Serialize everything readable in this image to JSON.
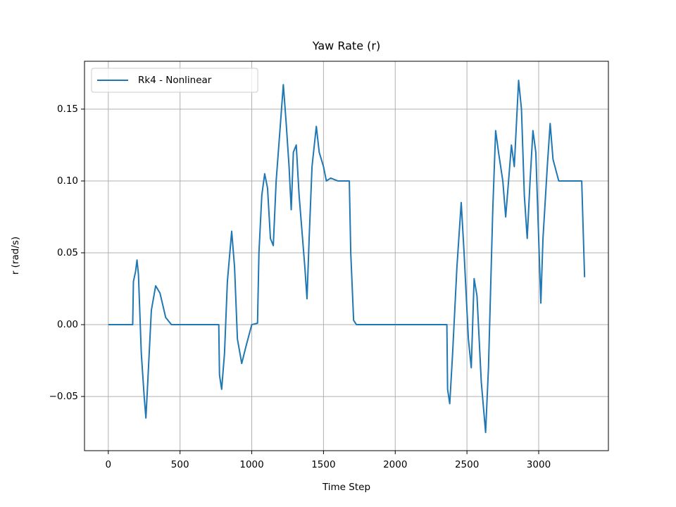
{
  "chart_data": {
    "type": "line",
    "title": "Yaw Rate (r)",
    "x_label": "Time Step",
    "y_label": "r (rad/s)",
    "x": [
      0,
      170,
      175,
      190,
      200,
      210,
      230,
      250,
      262,
      275,
      300,
      330,
      360,
      400,
      440,
      500,
      770,
      775,
      790,
      810,
      830,
      860,
      880,
      900,
      930,
      960,
      1000,
      1040,
      1050,
      1070,
      1090,
      1110,
      1130,
      1150,
      1170,
      1200,
      1220,
      1240,
      1260,
      1275,
      1290,
      1310,
      1330,
      1350,
      1370,
      1385,
      1400,
      1420,
      1450,
      1470,
      1500,
      1520,
      1550,
      1600,
      1660,
      1680,
      1690,
      1710,
      1730,
      2360,
      2365,
      2380,
      2400,
      2430,
      2460,
      2480,
      2510,
      2530,
      2550,
      2570,
      2600,
      2630,
      2650,
      2680,
      2700,
      2720,
      2750,
      2770,
      2790,
      2810,
      2830,
      2860,
      2880,
      2900,
      2920,
      2940,
      2960,
      2980,
      3000,
      3015,
      3030,
      3060,
      3080,
      3100,
      3140,
      3200,
      3280,
      3300,
      3320
    ],
    "series": [
      {
        "name": "Rk4 - Nonlinear",
        "color": "#1f77b4",
        "values": [
          0,
          0,
          0.03,
          0.037,
          0.045,
          0.035,
          -0.02,
          -0.05,
          -0.065,
          -0.04,
          0.01,
          0.027,
          0.022,
          0.005,
          0,
          0,
          0,
          -0.035,
          -0.045,
          -0.02,
          0.03,
          0.065,
          0.04,
          -0.01,
          -0.027,
          -0.015,
          0,
          0.001,
          0.05,
          0.09,
          0.105,
          0.095,
          0.06,
          0.055,
          0.1,
          0.14,
          0.167,
          0.14,
          0.11,
          0.08,
          0.12,
          0.125,
          0.09,
          0.065,
          0.04,
          0.018,
          0.06,
          0.11,
          0.138,
          0.12,
          0.11,
          0.1,
          0.102,
          0.1,
          0.1,
          0.1,
          0.05,
          0.003,
          0,
          0,
          -0.045,
          -0.055,
          -0.02,
          0.04,
          0.085,
          0.05,
          -0.01,
          -0.03,
          0.032,
          0.02,
          -0.04,
          -0.075,
          -0.03,
          0.08,
          0.135,
          0.12,
          0.1,
          0.075,
          0.1,
          0.125,
          0.11,
          0.17,
          0.15,
          0.09,
          0.06,
          0.1,
          0.135,
          0.12,
          0.06,
          0.015,
          0.06,
          0.11,
          0.14,
          0.115,
          0.1,
          0.1,
          0.1,
          0.1,
          0.033
        ]
      }
    ],
    "xlim": [
      -166,
      3486
    ],
    "ylim": [
      -0.0877,
      0.1833
    ],
    "xticks": [
      0,
      500,
      1000,
      1500,
      2000,
      2500,
      3000
    ],
    "yticks": [
      {
        "value": -0.05,
        "label": "−0.05"
      },
      {
        "value": 0,
        "label": "0.00"
      },
      0.05,
      {
        "value": 0.1,
        "label": "0.10"
      },
      0.15
    ],
    "grid": true,
    "legend": "upper left"
  }
}
